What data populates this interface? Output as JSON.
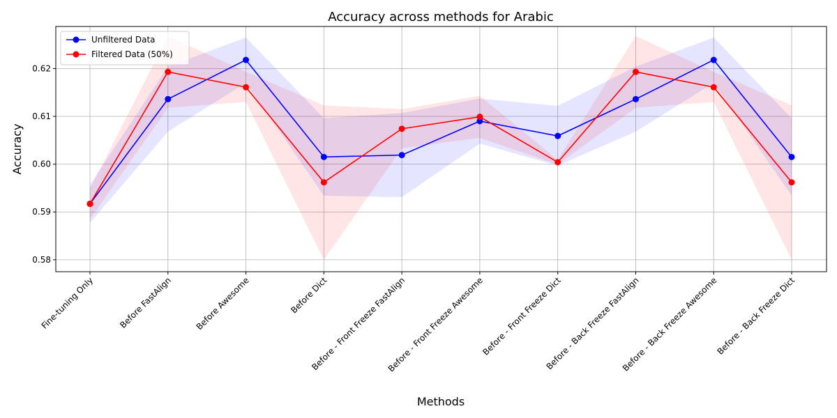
{
  "chart_data": {
    "type": "line",
    "title": "Accuracy across methods for Arabic",
    "xlabel": "Methods",
    "ylabel": "Accuracy",
    "categories": [
      "Fine-tuning Only",
      "Before FastAlign",
      "Before Awesome",
      "Before Dict",
      "Before - Front Freeze FastAlign",
      "Before - Front Freeze Awesome",
      "Before - Front Freeze Dict",
      "Before - Back Freeze FastAlign",
      "Before - Back Freeze Awesome",
      "Before - Back Freeze Dict"
    ],
    "ylim": [
      0.5775,
      0.6288
    ],
    "yticks": [
      0.58,
      0.59,
      0.6,
      0.61,
      0.62
    ],
    "ytick_labels": [
      "0.58",
      "0.59",
      "0.60",
      "0.61",
      "0.62"
    ],
    "grid": true,
    "legend_position": "top-left",
    "series": [
      {
        "name": "Unfiltered Data",
        "color": "#0000ff",
        "values": [
          0.5917,
          0.6136,
          0.6218,
          0.6015,
          0.6019,
          0.609,
          0.6059,
          0.6136,
          0.6218,
          0.6015
        ],
        "lower": [
          0.5877,
          0.6068,
          0.617,
          0.5934,
          0.5931,
          0.6043,
          0.5997,
          0.6068,
          0.617,
          0.5934
        ],
        "upper": [
          0.5957,
          0.6204,
          0.6265,
          0.6096,
          0.6107,
          0.6137,
          0.6122,
          0.6204,
          0.6265,
          0.6096
        ]
      },
      {
        "name": "Filtered Data (50%)",
        "color": "#ff0000",
        "values": [
          0.5917,
          0.6193,
          0.6161,
          0.5962,
          0.6074,
          0.6099,
          0.6004,
          0.6193,
          0.6161,
          0.5962
        ],
        "lower": [
          0.5885,
          0.6118,
          0.613,
          0.58,
          0.6033,
          0.6055,
          0.5999,
          0.6118,
          0.613,
          0.58
        ],
        "upper": [
          0.5949,
          0.6268,
          0.6193,
          0.6123,
          0.6115,
          0.6143,
          0.6009,
          0.6268,
          0.6193,
          0.6123
        ]
      }
    ]
  }
}
